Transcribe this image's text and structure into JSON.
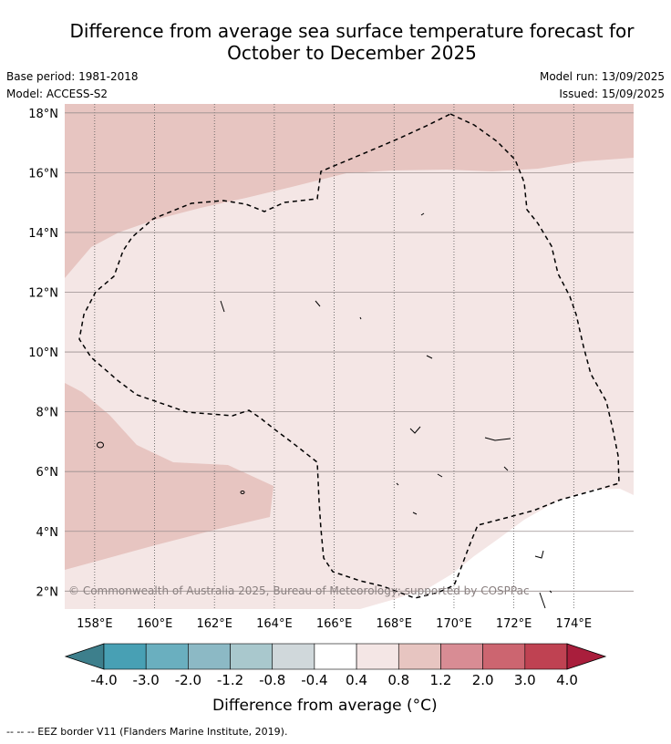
{
  "title_line1": "Difference from average sea surface temperature forecast for",
  "title_line2": "October to December 2025",
  "base_period": "Base period: 1981-2018",
  "model": "Model: ACCESS-S2",
  "model_run": "Model run: 13/09/2025",
  "issued": "Issued: 15/09/2025",
  "copyright": "© Commonwealth of Australia 2025, Bureau of Meteorology; supported by COSPPac",
  "map": {
    "lon_min": 157.0,
    "lon_max": 176.0,
    "lat_min": 1.4,
    "lat_max": 18.3,
    "lon_ticks": [
      158,
      160,
      162,
      164,
      166,
      168,
      170,
      172,
      174
    ],
    "lon_labels": [
      "158°E",
      "160°E",
      "162°E",
      "164°E",
      "166°E",
      "168°E",
      "170°E",
      "172°E",
      "174°E"
    ],
    "lat_ticks": [
      2,
      4,
      6,
      8,
      10,
      12,
      14,
      16,
      18
    ],
    "lat_labels": [
      "2°N",
      "4°N",
      "6°N",
      "8°N",
      "10°N",
      "12°N",
      "14°N",
      "16°N",
      "18°N"
    ]
  },
  "colorbar": {
    "title": "Difference from average (°C)",
    "tick_labels": [
      "-4.0",
      "-3.0",
      "-2.0",
      "-1.2",
      "-0.8",
      "-0.4",
      "0.4",
      "0.8",
      "1.2",
      "2.0",
      "3.0",
      "4.0"
    ],
    "low_color": "#3d7f8c",
    "colors": [
      "#48a0b4",
      "#6aafbf",
      "#8cb9c5",
      "#a9c8cd",
      "#d0d8db",
      "#ffffff",
      "#f4e6e5",
      "#e7c5c1",
      "#d88c94",
      "#cc6570",
      "#bf4252"
    ],
    "high_color": "#a91e3c"
  },
  "footer": "-- -- -- EEZ border V11 (Flanders Marine Institute, 2019)."
}
